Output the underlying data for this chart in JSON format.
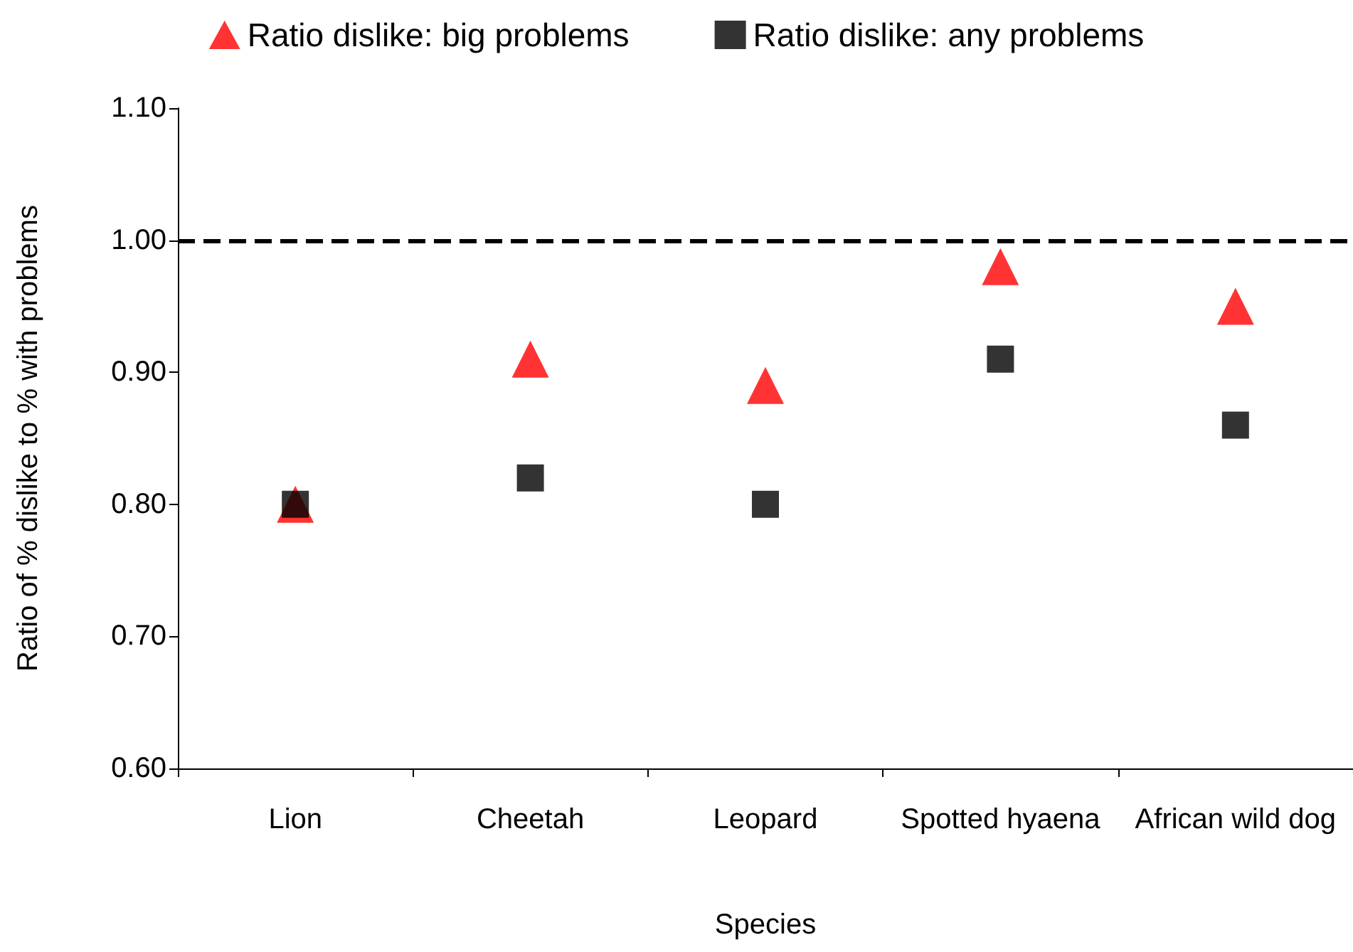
{
  "chart_data": {
    "type": "scatter",
    "xlabel": "Species",
    "ylabel": "Ratio of % dislike to % with problems",
    "categories": [
      "Lion",
      "Cheetah",
      "Leopard",
      "Spotted hyaena",
      "African wild dog"
    ],
    "series": [
      {
        "name": "Ratio dislike: big problems",
        "color": "#ff0000",
        "marker": "triangle",
        "values": [
          0.8,
          0.91,
          0.89,
          0.98,
          0.95
        ]
      },
      {
        "name": "Ratio dislike: any problems",
        "color": "#000000",
        "marker": "square",
        "values": [
          0.8,
          0.82,
          0.8,
          0.91,
          0.86
        ]
      }
    ],
    "ylim": [
      0.6,
      1.1
    ],
    "yticks": [
      {
        "value": 0.6,
        "label": "0.60"
      },
      {
        "value": 0.7,
        "label": "0.70"
      },
      {
        "value": 0.8,
        "label": "0.80"
      },
      {
        "value": 0.9,
        "label": "0.90"
      },
      {
        "value": 1.0,
        "label": "1.00"
      },
      {
        "value": 1.1,
        "label": "1.10"
      }
    ],
    "ref_lines": [
      {
        "axis": "y",
        "value": 1.0,
        "color": "#000000",
        "line_style": "dashed"
      }
    ],
    "grid": false,
    "legend": "top"
  }
}
